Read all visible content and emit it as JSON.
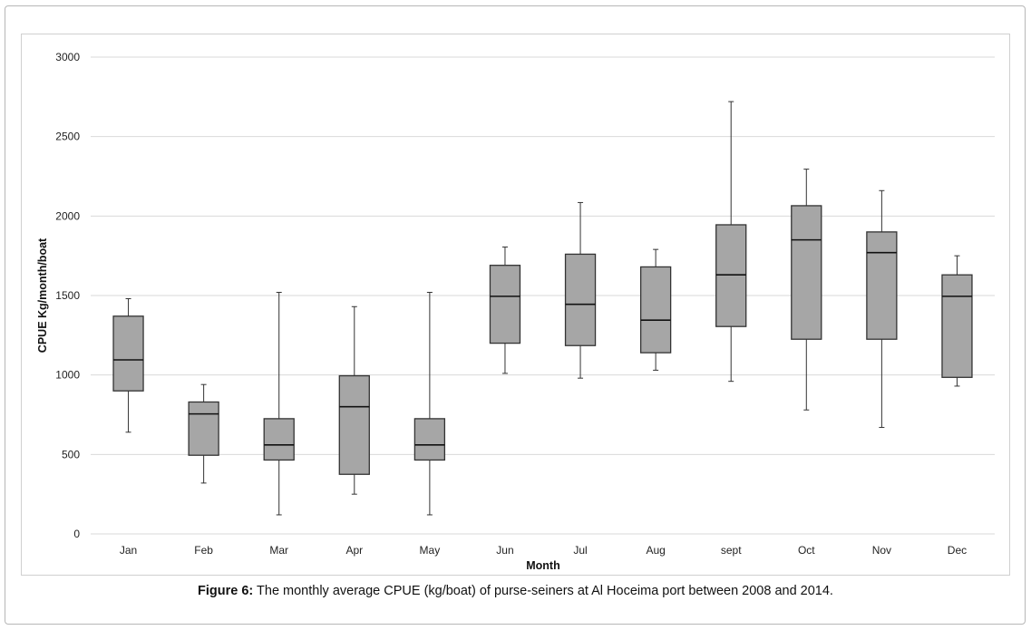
{
  "caption": {
    "label": "Figure 6:",
    "text": " The monthly average CPUE (kg/boat) of purse-seiners at Al Hoceima port between 2008 and 2014."
  },
  "colors": {
    "box_fill": "#a6a6a6",
    "stroke": "#333333",
    "grid": "#d9d9d9"
  },
  "chart_data": {
    "type": "box",
    "title": "",
    "xlabel": "Month",
    "ylabel": "CPUE  Kg/month/boat",
    "ylim": [
      0,
      3000
    ],
    "yticks": [
      0,
      500,
      1000,
      1500,
      2000,
      2500,
      3000
    ],
    "grid": true,
    "legend": "none",
    "categories": [
      "Jan",
      "Feb",
      "Mar",
      "Apr",
      "May",
      "Jun",
      "Jul",
      "Aug",
      "sept",
      "Oct",
      "Nov",
      "Dec"
    ],
    "boxes": [
      {
        "min": 640,
        "q1": 900,
        "median": 1095,
        "q3": 1370,
        "max": 1480
      },
      {
        "min": 320,
        "q1": 495,
        "median": 755,
        "q3": 830,
        "max": 940
      },
      {
        "min": 120,
        "q1": 465,
        "median": 560,
        "q3": 725,
        "max": 1520
      },
      {
        "min": 250,
        "q1": 375,
        "median": 800,
        "q3": 995,
        "max": 1430
      },
      {
        "min": 120,
        "q1": 465,
        "median": 560,
        "q3": 725,
        "max": 1520
      },
      {
        "min": 1010,
        "q1": 1200,
        "median": 1495,
        "q3": 1690,
        "max": 1805
      },
      {
        "min": 980,
        "q1": 1185,
        "median": 1445,
        "q3": 1760,
        "max": 2085
      },
      {
        "min": 1030,
        "q1": 1140,
        "median": 1345,
        "q3": 1680,
        "max": 1790
      },
      {
        "min": 960,
        "q1": 1305,
        "median": 1630,
        "q3": 1945,
        "max": 2720
      },
      {
        "min": 780,
        "q1": 1225,
        "median": 1850,
        "q3": 2065,
        "max": 2295
      },
      {
        "min": 670,
        "q1": 1225,
        "median": 1770,
        "q3": 1900,
        "max": 2160
      },
      {
        "min": 930,
        "q1": 985,
        "median": 1495,
        "q3": 1630,
        "max": 1750
      }
    ]
  }
}
